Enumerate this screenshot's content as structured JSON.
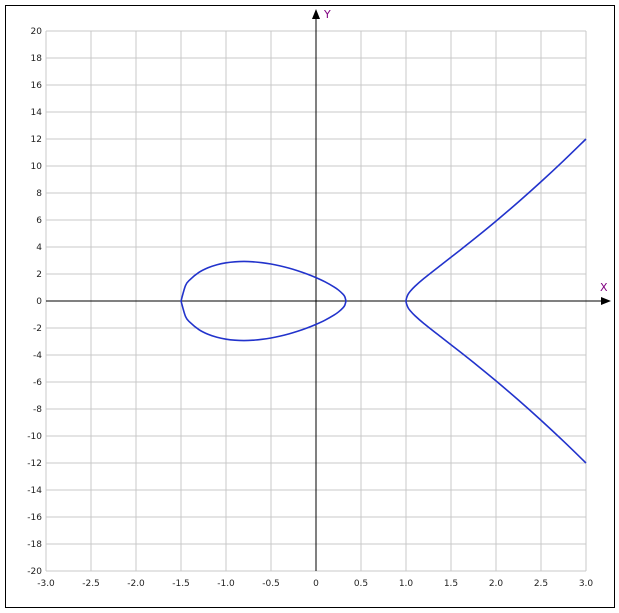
{
  "chart_data": {
    "type": "line",
    "title": "",
    "xlabel": "X",
    "ylabel": "Y",
    "xlim": [
      -3.0,
      3.0
    ],
    "ylim": [
      -20,
      20
    ],
    "grid": true,
    "x_ticks": [
      "-3.0",
      "-2.5",
      "-2.0",
      "-1.5",
      "-1.0",
      "-0.5",
      "0",
      "0.5",
      "1.0",
      "1.5",
      "2.0",
      "2.5",
      "3.0"
    ],
    "y_ticks": [
      "20",
      "18",
      "16",
      "14",
      "12",
      "10",
      "8",
      "6",
      "4",
      "2",
      "0",
      "-2",
      "-4",
      "-6",
      "-8",
      "-10",
      "-12",
      "-14",
      "-16",
      "-18",
      "-20"
    ],
    "line_color": "#2233cc",
    "series": [
      {
        "part": "closed loop (upper half, mirrored below)",
        "x": [
          -1.5,
          -1.45,
          -1.4,
          -1.3,
          -1.2,
          -1.1,
          -1.0,
          -0.9,
          -0.8,
          -0.7,
          -0.6,
          -0.5,
          -0.4,
          -0.3,
          -0.2,
          -0.1,
          0,
          0.1,
          0.2,
          0.25,
          0.3,
          0.32,
          0.3333
        ],
        "y": [
          0,
          1.145,
          1.58,
          2.123,
          2.464,
          2.688,
          2.828,
          2.904,
          2.927,
          2.904,
          2.84,
          2.739,
          2.603,
          2.435,
          2.234,
          2.001,
          1.732,
          1.42,
          1.043,
          0.81,
          0.502,
          0.315,
          0
        ]
      },
      {
        "part": "open branch (upper half, mirrored below)",
        "x": [
          1.0,
          1.02,
          1.05,
          1.1,
          1.2,
          1.4,
          1.6,
          1.8,
          2.0,
          2.25,
          2.5,
          2.75,
          3.0
        ],
        "y": [
          0,
          0.456,
          0.74,
          1.094,
          1.676,
          2.725,
          3.76,
          4.82,
          5.916,
          7.342,
          8.832,
          10.385,
          12
        ]
      }
    ]
  }
}
